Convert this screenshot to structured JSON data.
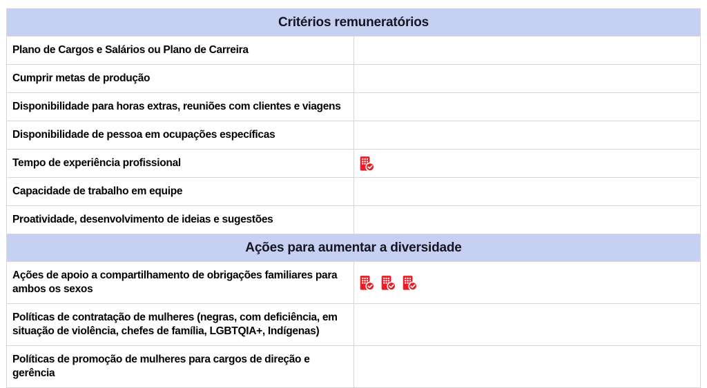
{
  "colors": {
    "section_header_bg": "#c6d0f3",
    "section_header_text": "#15151f",
    "row_text": "#000000",
    "grid_border": "#d6d6d6",
    "outer_border": "#c4c4c4",
    "badge_red": "#ed1c24",
    "badge_glyph": "#ffffff"
  },
  "icons": {
    "badge": "building-check-icon"
  },
  "table": {
    "columns": [
      {
        "name": "criterion"
      },
      {
        "name": "status"
      }
    ],
    "sections": [
      {
        "header": "Critérios remuneratórios",
        "rows": [
          {
            "label": "Plano de Cargos e Salários ou Plano de Carreira",
            "badges": 0
          },
          {
            "label": "Cumprir metas de produção",
            "badges": 0
          },
          {
            "label": "Disponibilidade para horas extras, reuniões com clientes e viagens",
            "badges": 0
          },
          {
            "label": "Disponibilidade de pessoa em ocupações específicas",
            "badges": 0
          },
          {
            "label": "Tempo de experiência profissional",
            "badges": 1
          },
          {
            "label": "Capacidade de trabalho em equipe",
            "badges": 0
          },
          {
            "label": "Proatividade, desenvolvimento de ideias e sugestões",
            "badges": 0
          }
        ]
      },
      {
        "header": "Ações para aumentar a diversidade",
        "rows": [
          {
            "label": "Ações de apoio a compartilhamento de obrigações familiares para ambos os sexos",
            "badges": 3
          },
          {
            "label": "Políticas de contratação de mulheres (negras, com deficiência, em situação de violência, chefes de família, LGBTQIA+, Indígenas)",
            "badges": 0
          },
          {
            "label": "Políticas de promoção de mulheres para cargos de direção e gerência",
            "badges": 0
          }
        ]
      }
    ]
  }
}
